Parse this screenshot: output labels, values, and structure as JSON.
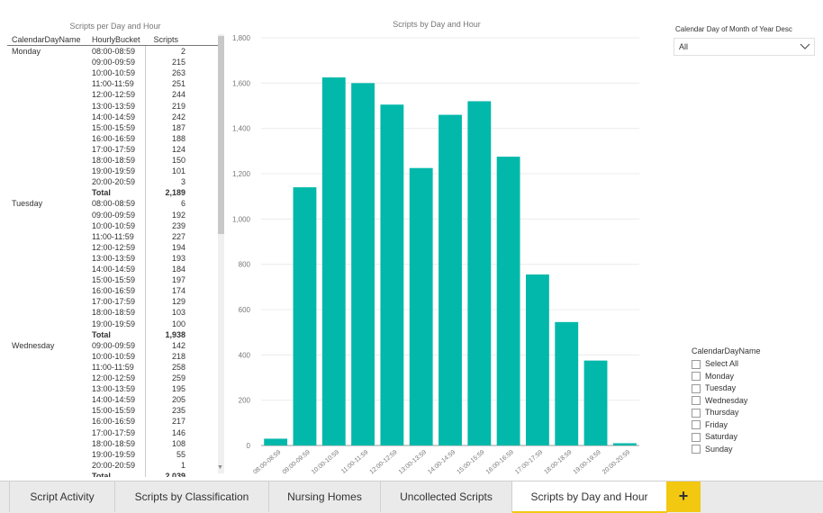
{
  "table": {
    "title": "Scripts per Day and Hour",
    "headers": [
      "CalendarDayName",
      "HourlyBucket",
      "Scripts"
    ],
    "rows": [
      {
        "day": "Monday",
        "hour": "08:00-08:59",
        "val": "2"
      },
      {
        "day": "",
        "hour": "09:00-09:59",
        "val": "215"
      },
      {
        "day": "",
        "hour": "10:00-10:59",
        "val": "263"
      },
      {
        "day": "",
        "hour": "11:00-11:59",
        "val": "251"
      },
      {
        "day": "",
        "hour": "12:00-12:59",
        "val": "244"
      },
      {
        "day": "",
        "hour": "13:00-13:59",
        "val": "219"
      },
      {
        "day": "",
        "hour": "14:00-14:59",
        "val": "242"
      },
      {
        "day": "",
        "hour": "15:00-15:59",
        "val": "187"
      },
      {
        "day": "",
        "hour": "16:00-16:59",
        "val": "188"
      },
      {
        "day": "",
        "hour": "17:00-17:59",
        "val": "124"
      },
      {
        "day": "",
        "hour": "18:00-18:59",
        "val": "150"
      },
      {
        "day": "",
        "hour": "19:00-19:59",
        "val": "101"
      },
      {
        "day": "",
        "hour": "20:00-20:59",
        "val": "3"
      },
      {
        "day": "",
        "hour": "Total",
        "val": "2,189",
        "total": true
      },
      {
        "day": "Tuesday",
        "hour": "08:00-08:59",
        "val": "6"
      },
      {
        "day": "",
        "hour": "09:00-09:59",
        "val": "192"
      },
      {
        "day": "",
        "hour": "10:00-10:59",
        "val": "239"
      },
      {
        "day": "",
        "hour": "11:00-11:59",
        "val": "227"
      },
      {
        "day": "",
        "hour": "12:00-12:59",
        "val": "194"
      },
      {
        "day": "",
        "hour": "13:00-13:59",
        "val": "193"
      },
      {
        "day": "",
        "hour": "14:00-14:59",
        "val": "184"
      },
      {
        "day": "",
        "hour": "15:00-15:59",
        "val": "197"
      },
      {
        "day": "",
        "hour": "16:00-16:59",
        "val": "174"
      },
      {
        "day": "",
        "hour": "17:00-17:59",
        "val": "129"
      },
      {
        "day": "",
        "hour": "18:00-18:59",
        "val": "103"
      },
      {
        "day": "",
        "hour": "19:00-19:59",
        "val": "100"
      },
      {
        "day": "",
        "hour": "Total",
        "val": "1,938",
        "total": true
      },
      {
        "day": "Wednesday",
        "hour": "09:00-09:59",
        "val": "142"
      },
      {
        "day": "",
        "hour": "10:00-10:59",
        "val": "218"
      },
      {
        "day": "",
        "hour": "11:00-11:59",
        "val": "258"
      },
      {
        "day": "",
        "hour": "12:00-12:59",
        "val": "259"
      },
      {
        "day": "",
        "hour": "13:00-13:59",
        "val": "195"
      },
      {
        "day": "",
        "hour": "14:00-14:59",
        "val": "205"
      },
      {
        "day": "",
        "hour": "15:00-15:59",
        "val": "235"
      },
      {
        "day": "",
        "hour": "16:00-16:59",
        "val": "217"
      },
      {
        "day": "",
        "hour": "17:00-17:59",
        "val": "146"
      },
      {
        "day": "",
        "hour": "18:00-18:59",
        "val": "108"
      },
      {
        "day": "",
        "hour": "19:00-19:59",
        "val": "55"
      },
      {
        "day": "",
        "hour": "20:00-20:59",
        "val": "1"
      },
      {
        "day": "",
        "hour": "Total",
        "val": "2,039",
        "total": true
      }
    ]
  },
  "chart_data": {
    "type": "bar",
    "title": "Scripts by Day and Hour",
    "categories": [
      "08:00-08:59",
      "09:00-09:59",
      "10:00-10:59",
      "11:00-11:59",
      "12:00-12:59",
      "13:00-13:59",
      "14:00-14:59",
      "15:00-15:59",
      "16:00-16:59",
      "17:00-17:59",
      "18:00-18:59",
      "19:00-19:59",
      "20:00-20:59"
    ],
    "values": [
      30,
      1140,
      1625,
      1600,
      1505,
      1225,
      1460,
      1520,
      1275,
      755,
      545,
      375,
      10
    ],
    "ylim": [
      0,
      1800
    ],
    "yticks": [
      "0",
      "200",
      "400",
      "600",
      "800",
      "1,000",
      "1,200",
      "1,400",
      "1,600",
      "1,800"
    ],
    "ytick_values": [
      0,
      200,
      400,
      600,
      800,
      1000,
      1200,
      1400,
      1600,
      1800
    ],
    "grid": true,
    "color": "#01b8aa"
  },
  "slicer_month": {
    "label": "Calendar Day of Month of Year Desc",
    "value": "All",
    "icon": "chevron-down-icon"
  },
  "slicer_day": {
    "label": "CalendarDayName",
    "options": [
      "Select All",
      "Monday",
      "Tuesday",
      "Wednesday",
      "Thursday",
      "Friday",
      "Saturday",
      "Sunday"
    ]
  },
  "tabs": {
    "items": [
      "Script Activity",
      "Scripts by Classification",
      "Nursing Homes",
      "Uncollected Scripts",
      "Scripts by Day and Hour"
    ],
    "active": 4,
    "add_label": "+",
    "accent": "#f2c811"
  }
}
